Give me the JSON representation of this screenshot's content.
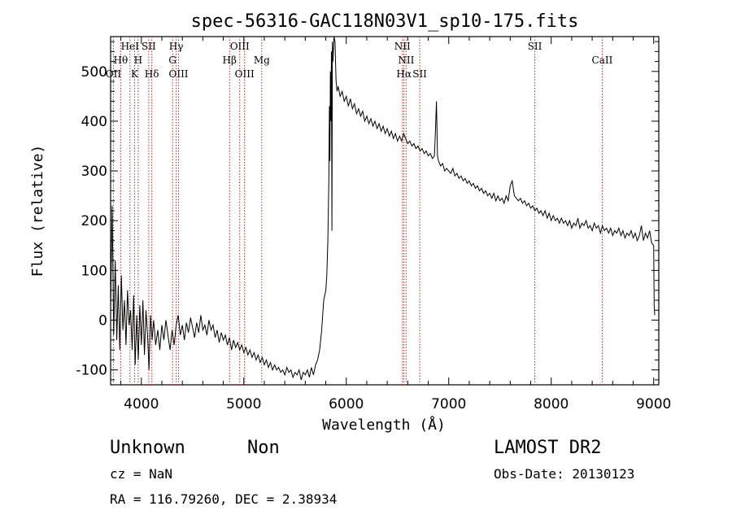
{
  "chart_data": {
    "type": "line",
    "title": "spec-56316-GAC118N03V1_sp10-175.fits",
    "xlabel": "Wavelength (Å)",
    "ylabel": "Flux (relative)",
    "xlim": [
      3700,
      9050
    ],
    "ylim": [
      -130,
      570
    ],
    "xticks": [
      4000,
      5000,
      6000,
      7000,
      8000,
      9000
    ],
    "yticks": [
      -100,
      0,
      100,
      200,
      300,
      400,
      500
    ],
    "line_color": "#000000",
    "marker_color": "#b03030",
    "spectral_lines": [
      {
        "name": "HeI",
        "x": 3889,
        "row": 0
      },
      {
        "name": "SII",
        "x": 4072,
        "row": 0
      },
      {
        "name": "Hγ",
        "x": 4340,
        "row": 0
      },
      {
        "name": "OIII",
        "x": 4960,
        "row": 0
      },
      {
        "name": "NII",
        "x": 6548,
        "row": 0
      },
      {
        "name": "SII",
        "x": 7840,
        "row": 0
      },
      {
        "name": "Hθ",
        "x": 3798,
        "row": 1
      },
      {
        "name": "H",
        "x": 3969,
        "row": 1
      },
      {
        "name": "G",
        "x": 4305,
        "row": 1
      },
      {
        "name": "Hβ",
        "x": 4861,
        "row": 1
      },
      {
        "name": "Mg",
        "x": 5175,
        "row": 1
      },
      {
        "name": "NII",
        "x": 6584,
        "row": 1
      },
      {
        "name": "CaII",
        "x": 8498,
        "row": 1
      },
      {
        "name": "OII",
        "x": 3727,
        "row": 2
      },
      {
        "name": "K",
        "x": 3934,
        "row": 2
      },
      {
        "name": "Hδ",
        "x": 4102,
        "row": 2
      },
      {
        "name": "OIII",
        "x": 4363,
        "row": 2
      },
      {
        "name": "OIII",
        "x": 5007,
        "row": 2
      },
      {
        "name": "Hα",
        "x": 6563,
        "row": 2
      },
      {
        "name": "SII",
        "x": 6717,
        "row": 2
      }
    ],
    "spectrum": [
      [
        3700,
        20
      ],
      [
        3715,
        230
      ],
      [
        3730,
        -30
      ],
      [
        3745,
        120
      ],
      [
        3760,
        -40
      ],
      [
        3775,
        70
      ],
      [
        3790,
        -60
      ],
      [
        3805,
        90
      ],
      [
        3820,
        -20
      ],
      [
        3835,
        40
      ],
      [
        3850,
        -50
      ],
      [
        3865,
        60
      ],
      [
        3880,
        -10
      ],
      [
        3895,
        20
      ],
      [
        3910,
        -60
      ],
      [
        3925,
        50
      ],
      [
        3940,
        -90
      ],
      [
        3955,
        10
      ],
      [
        3970,
        -80
      ],
      [
        3985,
        30
      ],
      [
        4000,
        -50
      ],
      [
        4015,
        40
      ],
      [
        4030,
        -70
      ],
      [
        4045,
        20
      ],
      [
        4060,
        -30
      ],
      [
        4075,
        -100
      ],
      [
        4090,
        10
      ],
      [
        4105,
        -40
      ],
      [
        4120,
        0
      ],
      [
        4140,
        -50
      ],
      [
        4160,
        -20
      ],
      [
        4180,
        -60
      ],
      [
        4200,
        -10
      ],
      [
        4220,
        -40
      ],
      [
        4240,
        0
      ],
      [
        4260,
        -30
      ],
      [
        4280,
        -60
      ],
      [
        4300,
        -20
      ],
      [
        4320,
        -50
      ],
      [
        4340,
        -10
      ],
      [
        4360,
        10
      ],
      [
        4380,
        -30
      ],
      [
        4400,
        -10
      ],
      [
        4420,
        -40
      ],
      [
        4440,
        -5
      ],
      [
        4460,
        -25
      ],
      [
        4480,
        5
      ],
      [
        4500,
        -15
      ],
      [
        4520,
        -35
      ],
      [
        4540,
        -5
      ],
      [
        4560,
        -25
      ],
      [
        4580,
        10
      ],
      [
        4600,
        -20
      ],
      [
        4620,
        -10
      ],
      [
        4640,
        -30
      ],
      [
        4660,
        0
      ],
      [
        4680,
        -20
      ],
      [
        4700,
        -10
      ],
      [
        4720,
        -35
      ],
      [
        4740,
        -20
      ],
      [
        4760,
        -45
      ],
      [
        4780,
        -25
      ],
      [
        4800,
        -40
      ],
      [
        4820,
        -30
      ],
      [
        4840,
        -50
      ],
      [
        4860,
        -35
      ],
      [
        4880,
        -60
      ],
      [
        4900,
        -40
      ],
      [
        4920,
        -55
      ],
      [
        4940,
        -45
      ],
      [
        4960,
        -60
      ],
      [
        4980,
        -50
      ],
      [
        5000,
        -65
      ],
      [
        5020,
        -55
      ],
      [
        5040,
        -70
      ],
      [
        5060,
        -60
      ],
      [
        5080,
        -75
      ],
      [
        5100,
        -65
      ],
      [
        5120,
        -80
      ],
      [
        5140,
        -70
      ],
      [
        5160,
        -85
      ],
      [
        5180,
        -75
      ],
      [
        5200,
        -90
      ],
      [
        5220,
        -80
      ],
      [
        5240,
        -95
      ],
      [
        5260,
        -85
      ],
      [
        5280,
        -100
      ],
      [
        5300,
        -90
      ],
      [
        5320,
        -100
      ],
      [
        5340,
        -95
      ],
      [
        5360,
        -105
      ],
      [
        5380,
        -100
      ],
      [
        5400,
        -110
      ],
      [
        5420,
        -95
      ],
      [
        5440,
        -105
      ],
      [
        5460,
        -100
      ],
      [
        5480,
        -115
      ],
      [
        5500,
        -105
      ],
      [
        5520,
        -110
      ],
      [
        5540,
        -100
      ],
      [
        5560,
        -120
      ],
      [
        5580,
        -105
      ],
      [
        5600,
        -110
      ],
      [
        5620,
        -100
      ],
      [
        5640,
        -115
      ],
      [
        5660,
        -95
      ],
      [
        5680,
        -110
      ],
      [
        5700,
        -90
      ],
      [
        5720,
        -80
      ],
      [
        5740,
        -60
      ],
      [
        5760,
        -20
      ],
      [
        5780,
        40
      ],
      [
        5800,
        60
      ],
      [
        5810,
        90
      ],
      [
        5820,
        160
      ],
      [
        5830,
        280
      ],
      [
        5835,
        430
      ],
      [
        5840,
        320
      ],
      [
        5845,
        500
      ],
      [
        5850,
        400
      ],
      [
        5855,
        540
      ],
      [
        5860,
        180
      ],
      [
        5865,
        560
      ],
      [
        5870,
        520
      ],
      [
        5880,
        580
      ],
      [
        5890,
        560
      ],
      [
        5900,
        480
      ],
      [
        5910,
        460
      ],
      [
        5920,
        470
      ],
      [
        5940,
        450
      ],
      [
        5960,
        460
      ],
      [
        5980,
        440
      ],
      [
        6000,
        450
      ],
      [
        6020,
        430
      ],
      [
        6040,
        445
      ],
      [
        6060,
        425
      ],
      [
        6080,
        435
      ],
      [
        6100,
        415
      ],
      [
        6120,
        425
      ],
      [
        6140,
        410
      ],
      [
        6160,
        420
      ],
      [
        6180,
        400
      ],
      [
        6200,
        410
      ],
      [
        6220,
        395
      ],
      [
        6240,
        405
      ],
      [
        6260,
        390
      ],
      [
        6280,
        400
      ],
      [
        6300,
        385
      ],
      [
        6320,
        395
      ],
      [
        6340,
        380
      ],
      [
        6360,
        390
      ],
      [
        6380,
        375
      ],
      [
        6400,
        385
      ],
      [
        6420,
        370
      ],
      [
        6440,
        380
      ],
      [
        6460,
        365
      ],
      [
        6480,
        375
      ],
      [
        6500,
        360
      ],
      [
        6520,
        370
      ],
      [
        6540,
        360
      ],
      [
        6560,
        375
      ],
      [
        6580,
        365
      ],
      [
        6600,
        355
      ],
      [
        6620,
        360
      ],
      [
        6640,
        350
      ],
      [
        6660,
        355
      ],
      [
        6680,
        345
      ],
      [
        6700,
        350
      ],
      [
        6720,
        340
      ],
      [
        6740,
        345
      ],
      [
        6760,
        335
      ],
      [
        6780,
        340
      ],
      [
        6800,
        330
      ],
      [
        6820,
        335
      ],
      [
        6840,
        325
      ],
      [
        6860,
        330
      ],
      [
        6870,
        380
      ],
      [
        6880,
        440
      ],
      [
        6890,
        330
      ],
      [
        6900,
        320
      ],
      [
        6920,
        310
      ],
      [
        6940,
        315
      ],
      [
        6960,
        300
      ],
      [
        6980,
        305
      ],
      [
        7000,
        300
      ],
      [
        7020,
        295
      ],
      [
        7040,
        305
      ],
      [
        7060,
        290
      ],
      [
        7080,
        295
      ],
      [
        7100,
        285
      ],
      [
        7120,
        290
      ],
      [
        7140,
        280
      ],
      [
        7160,
        285
      ],
      [
        7180,
        275
      ],
      [
        7200,
        280
      ],
      [
        7220,
        270
      ],
      [
        7240,
        275
      ],
      [
        7260,
        265
      ],
      [
        7280,
        270
      ],
      [
        7300,
        260
      ],
      [
        7320,
        265
      ],
      [
        7340,
        255
      ],
      [
        7360,
        260
      ],
      [
        7380,
        250
      ],
      [
        7400,
        255
      ],
      [
        7420,
        245
      ],
      [
        7440,
        255
      ],
      [
        7460,
        240
      ],
      [
        7480,
        250
      ],
      [
        7500,
        240
      ],
      [
        7520,
        245
      ],
      [
        7540,
        235
      ],
      [
        7560,
        250
      ],
      [
        7580,
        240
      ],
      [
        7600,
        270
      ],
      [
        7620,
        280
      ],
      [
        7640,
        250
      ],
      [
        7660,
        245
      ],
      [
        7680,
        240
      ],
      [
        7700,
        245
      ],
      [
        7720,
        235
      ],
      [
        7740,
        240
      ],
      [
        7760,
        230
      ],
      [
        7780,
        235
      ],
      [
        7800,
        225
      ],
      [
        7820,
        230
      ],
      [
        7840,
        220
      ],
      [
        7860,
        225
      ],
      [
        7880,
        215
      ],
      [
        7900,
        220
      ],
      [
        7920,
        210
      ],
      [
        7940,
        220
      ],
      [
        7960,
        205
      ],
      [
        7980,
        215
      ],
      [
        8000,
        200
      ],
      [
        8020,
        210
      ],
      [
        8040,
        200
      ],
      [
        8060,
        205
      ],
      [
        8080,
        195
      ],
      [
        8100,
        205
      ],
      [
        8120,
        195
      ],
      [
        8140,
        200
      ],
      [
        8160,
        190
      ],
      [
        8180,
        200
      ],
      [
        8200,
        185
      ],
      [
        8220,
        195
      ],
      [
        8240,
        190
      ],
      [
        8260,
        205
      ],
      [
        8280,
        185
      ],
      [
        8300,
        195
      ],
      [
        8320,
        190
      ],
      [
        8340,
        200
      ],
      [
        8360,
        185
      ],
      [
        8380,
        190
      ],
      [
        8400,
        180
      ],
      [
        8420,
        195
      ],
      [
        8440,
        185
      ],
      [
        8460,
        190
      ],
      [
        8480,
        175
      ],
      [
        8500,
        190
      ],
      [
        8520,
        180
      ],
      [
        8540,
        185
      ],
      [
        8560,
        175
      ],
      [
        8580,
        185
      ],
      [
        8600,
        170
      ],
      [
        8620,
        180
      ],
      [
        8640,
        175
      ],
      [
        8660,
        185
      ],
      [
        8680,
        170
      ],
      [
        8700,
        180
      ],
      [
        8720,
        165
      ],
      [
        8740,
        175
      ],
      [
        8760,
        170
      ],
      [
        8780,
        180
      ],
      [
        8800,
        165
      ],
      [
        8820,
        175
      ],
      [
        8840,
        160
      ],
      [
        8860,
        170
      ],
      [
        8880,
        190
      ],
      [
        8900,
        160
      ],
      [
        8920,
        175
      ],
      [
        8940,
        165
      ],
      [
        8960,
        180
      ],
      [
        8980,
        155
      ],
      [
        9000,
        150
      ],
      [
        9005,
        30
      ],
      [
        9010,
        10
      ]
    ]
  },
  "footer": {
    "object_class": "Unknown",
    "subclass": "Non",
    "survey": "LAMOST DR2",
    "cz": "cz = NaN",
    "obs_date": "Obs-Date: 20130123",
    "radec": "RA = 116.79260, DEC =   2.38934"
  }
}
